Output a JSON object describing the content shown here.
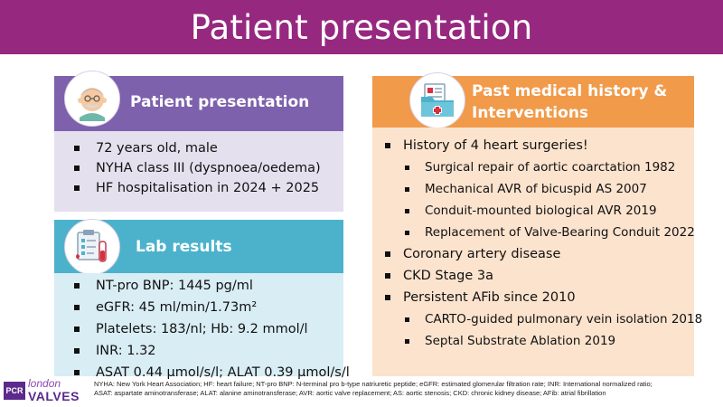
{
  "slide": {
    "title": "Patient presentation"
  },
  "patient_card": {
    "title": "Patient presentation",
    "icon": "elderly-man-icon",
    "items": [
      "72 years old, male",
      "NYHA class III (dyspnoea/oedema)",
      "HF hospitalisation in 2024 + 2025"
    ]
  },
  "lab_card": {
    "title": "Lab results",
    "icon": "lab-checklist-icon",
    "items": [
      "NT-pro BNP:  1445 pg/ml",
      "eGFR: 45 ml/min/1.73m²",
      "Platelets: 183/nl; Hb: 9.2 mmol/l",
      "INR: 1.32",
      "ASAT 0.44 µmol/s/l; ALAT 0.39 µmol/s/l"
    ]
  },
  "history_card": {
    "title_line1": "Past medical history &",
    "title_line2": "Interventions",
    "icon": "medical-folder-icon",
    "items": [
      "History of 4 heart surgeries!",
      "Surgical repair of aortic coarctation 1982",
      "Mechanical AVR of bicuspid AS 2007",
      "Conduit-mounted biological AVR 2019",
      "Replacement of Valve-Bearing Conduit  2022",
      "Coronary artery disease",
      "CKD Stage 3a",
      "Persistent AFib since 2010",
      "CARTO-guided pulmonary vein isolation 2018",
      "Septal Substrate Ablation 2019"
    ]
  },
  "footer": {
    "logo_pcr": "PCR",
    "logo_london": "london",
    "logo_valves": "VALVES",
    "footnote_line1": "NYHA: New York Heart Association; HF: heart failure; NT-pro BNP: N-terminal pro b-type natriuretic peptide; eGFR: estimated glomerular filtration rate; INR: International normalized ratio;",
    "footnote_line2": "ASAT: aspartate aminotransferase; ALAT: alanine aminotransferase; AVR: aortic valve replacement; AS: aortic stenosis; CKD: chronic kidney disease; AFib: atrial fibrillation"
  },
  "colors": {
    "title_bar": "#97287f",
    "patient_head": "#7d61ad",
    "patient_body": "#e5e0ee",
    "lab_head": "#4cb2cc",
    "lab_body": "#d9edf4",
    "history_head": "#f19a4a",
    "history_body": "#fce3ce"
  }
}
